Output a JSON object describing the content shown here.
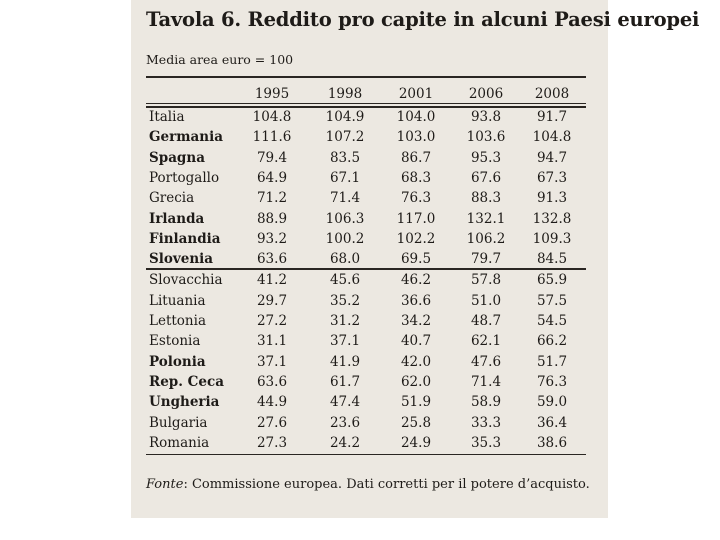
{
  "title": "Tavola 6. Reddito pro capite in alcuni Paesi europei",
  "subtitle": "Media area euro = 100",
  "years": [
    "1995",
    "1998",
    "2001",
    "2006",
    "2008"
  ],
  "rows": [
    {
      "country": "Italia",
      "values": [
        "104.8",
        "104.9",
        "104.0",
        "93.8",
        "91.7"
      ]
    },
    {
      "country": "Germania",
      "values": [
        "111.6",
        "107.2",
        "103.0",
        "103.6",
        "104.8"
      ]
    },
    {
      "country": "Spagna",
      "values": [
        "79.4",
        "83.5",
        "86.7",
        "95.3",
        "94.7"
      ]
    },
    {
      "country": "Portogallo",
      "values": [
        "64.9",
        "67.1",
        "68.3",
        "67.6",
        "67.3"
      ]
    },
    {
      "country": "Grecia",
      "values": [
        "71.2",
        "71.4",
        "76.3",
        "88.3",
        "91.3"
      ]
    },
    {
      "country": "Irlanda",
      "values": [
        "88.9",
        "106.3",
        "117.0",
        "132.1",
        "132.8"
      ]
    },
    {
      "country": "Finlandia",
      "values": [
        "93.2",
        "100.2",
        "102.2",
        "106.2",
        "109.3"
      ]
    },
    {
      "country": "Slovenia",
      "values": [
        "63.6",
        "68.0",
        "69.5",
        "79.7",
        "84.5"
      ]
    },
    {
      "country": "Slovacchia",
      "values": [
        "41.2",
        "45.6",
        "46.2",
        "57.8",
        "65.9"
      ]
    },
    {
      "country": "Lituania",
      "values": [
        "29.7",
        "35.2",
        "36.6",
        "51.0",
        "57.5"
      ]
    },
    {
      "country": "Lettonia",
      "values": [
        "27.2",
        "31.2",
        "34.2",
        "48.7",
        "54.5"
      ]
    },
    {
      "country": "Estonia",
      "values": [
        "31.1",
        "37.1",
        "40.7",
        "62.1",
        "66.2"
      ]
    },
    {
      "country": "Polonia",
      "values": [
        "37.1",
        "41.9",
        "42.0",
        "47.6",
        "51.7"
      ]
    },
    {
      "country": "Rep. Ceca",
      "values": [
        "63.6",
        "61.7",
        "62.0",
        "71.4",
        "76.3"
      ]
    },
    {
      "country": "Ungheria",
      "values": [
        "44.9",
        "47.4",
        "51.9",
        "58.9",
        "59.0"
      ]
    },
    {
      "country": "Bulgaria",
      "values": [
        "27.6",
        "23.6",
        "25.8",
        "33.3",
        "36.4"
      ]
    },
    {
      "country": "Romania",
      "values": [
        "27.3",
        "24.2",
        "24.9",
        "35.3",
        "38.6"
      ]
    }
  ],
  "source": {
    "label": "Fonte",
    "text": ": Commissione europea. Dati corretti per il potere d’acquisto."
  }
}
